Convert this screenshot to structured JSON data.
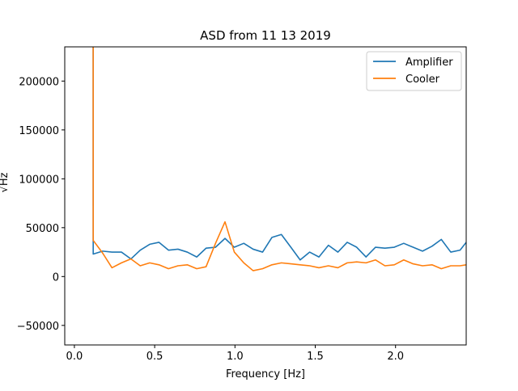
{
  "chart_data": {
    "type": "line",
    "title": "ASD from 11 13 2019",
    "xlabel": "Frequency [Hz]",
    "ylabel": "√Hz",
    "xlim": [
      -0.06,
      2.44
    ],
    "ylim": [
      -70000,
      235000
    ],
    "xticks": [
      0.0,
      0.5,
      1.0,
      1.5,
      2.0
    ],
    "xtick_labels": [
      "0.0",
      "0.5",
      "1.0",
      "1.5",
      "2.0"
    ],
    "yticks": [
      -50000,
      0,
      50000,
      100000,
      150000,
      200000
    ],
    "ytick_labels": [
      "−50000",
      "0",
      "50000",
      "100000",
      "150000",
      "200000"
    ],
    "grid": false,
    "legend_position": "top-right",
    "x": [
      0.117,
      0.1172,
      0.176,
      0.234,
      0.293,
      0.352,
      0.41,
      0.469,
      0.527,
      0.586,
      0.645,
      0.703,
      0.762,
      0.82,
      0.879,
      0.938,
      0.996,
      1.055,
      1.113,
      1.172,
      1.23,
      1.289,
      1.348,
      1.406,
      1.465,
      1.523,
      1.582,
      1.641,
      1.699,
      1.758,
      1.816,
      1.875,
      1.934,
      1.992,
      2.051,
      2.109,
      2.168,
      2.227,
      2.285,
      2.344,
      2.402,
      2.44
    ],
    "series": [
      {
        "name": "Amplifier",
        "color": "#1f77b4",
        "values": [
          260000,
          23000,
          26000,
          25000,
          25000,
          18000,
          27000,
          33000,
          35000,
          27000,
          28000,
          25000,
          20000,
          29000,
          30000,
          39000,
          30000,
          34000,
          28000,
          25000,
          40000,
          43000,
          30000,
          17000,
          25000,
          20000,
          32000,
          25000,
          35000,
          30000,
          20000,
          30000,
          29000,
          30000,
          34000,
          30000,
          26000,
          31000,
          38000,
          25000,
          27000,
          35000
        ]
      },
      {
        "name": "Cooler",
        "color": "#ff7f0e",
        "values": [
          260000,
          37000,
          24000,
          9000,
          14000,
          18000,
          11000,
          14000,
          12000,
          8000,
          11000,
          12000,
          8000,
          10000,
          34000,
          56000,
          25000,
          14000,
          6000,
          8000,
          12000,
          14000,
          13000,
          12000,
          11000,
          9000,
          11000,
          9000,
          14000,
          15000,
          14000,
          17000,
          11000,
          12000,
          17000,
          13000,
          11000,
          12000,
          8000,
          11000,
          11000,
          12000
        ]
      }
    ]
  }
}
